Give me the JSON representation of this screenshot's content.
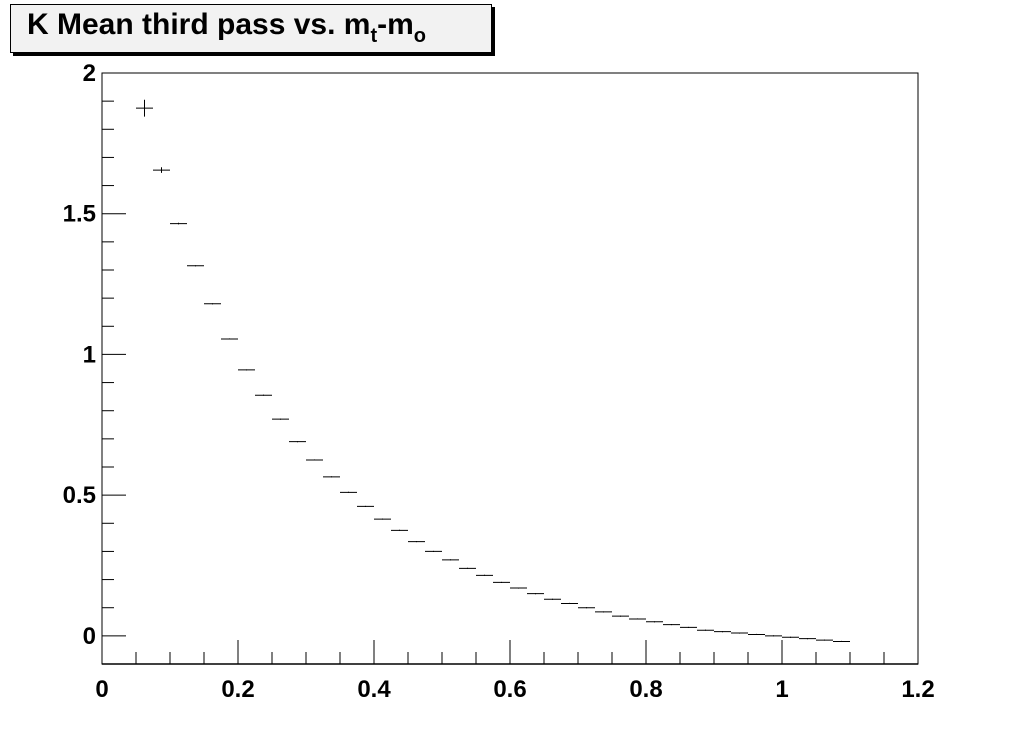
{
  "title": {
    "main": "K Mean third pass vs. m",
    "sub1": "t",
    "mid": "-m",
    "sub2": "o"
  },
  "chart_data": {
    "type": "scatter",
    "title": "K Mean third pass vs. m_t-m_o",
    "xlabel": "",
    "ylabel": "",
    "xlim": [
      0,
      1.2
    ],
    "ylim": [
      -0.1,
      2.0
    ],
    "x_ticks": [
      "0",
      "0.2",
      "0.4",
      "0.6",
      "0.8",
      "1",
      "1.2"
    ],
    "y_ticks": [
      "0",
      "0.5",
      "1",
      "1.5",
      "2"
    ],
    "x_tick_values": [
      0,
      0.2,
      0.4,
      0.6,
      0.8,
      1.0,
      1.2
    ],
    "y_tick_values": [
      0,
      0.5,
      1.0,
      1.5,
      2.0
    ],
    "bin_width": 0.025,
    "series": [
      {
        "x": [
          0.0625,
          0.0875,
          0.1125,
          0.1375,
          0.1625,
          0.1875,
          0.2125,
          0.2375,
          0.2625,
          0.2875,
          0.3125,
          0.3375,
          0.3625,
          0.3875,
          0.4125,
          0.4375,
          0.4625,
          0.4875,
          0.5125,
          0.5375,
          0.5625,
          0.5875,
          0.6125,
          0.6375,
          0.6625,
          0.6875,
          0.7125,
          0.7375,
          0.7625,
          0.7875,
          0.8125,
          0.8375,
          0.8625,
          0.8875,
          0.9125,
          0.9375,
          0.9625,
          0.9875,
          1.0125,
          1.0375,
          1.0625,
          1.0875
        ],
        "y": [
          1.875,
          1.655,
          1.465,
          1.315,
          1.18,
          1.055,
          0.945,
          0.855,
          0.77,
          0.69,
          0.625,
          0.565,
          0.51,
          0.46,
          0.415,
          0.375,
          0.335,
          0.3,
          0.27,
          0.24,
          0.215,
          0.19,
          0.17,
          0.15,
          0.13,
          0.115,
          0.1,
          0.085,
          0.07,
          0.06,
          0.05,
          0.04,
          0.03,
          0.02,
          0.015,
          0.01,
          0.005,
          0.0,
          -0.005,
          -0.01,
          -0.015,
          -0.02
        ],
        "yerr": [
          0.03,
          0.01,
          0.003,
          0.002,
          0.002,
          0.002,
          0.002,
          0.002,
          0.002,
          0.002,
          0.002,
          0.002,
          0.002,
          0.002,
          0.002,
          0.002,
          0.002,
          0.002,
          0.002,
          0.002,
          0.002,
          0.002,
          0.002,
          0.002,
          0.002,
          0.002,
          0.002,
          0.002,
          0.002,
          0.002,
          0.002,
          0.002,
          0.002,
          0.002,
          0.002,
          0.002,
          0.002,
          0.002,
          0.002,
          0.002,
          0.002,
          0.002
        ]
      }
    ],
    "grid": false,
    "legend": "none"
  }
}
